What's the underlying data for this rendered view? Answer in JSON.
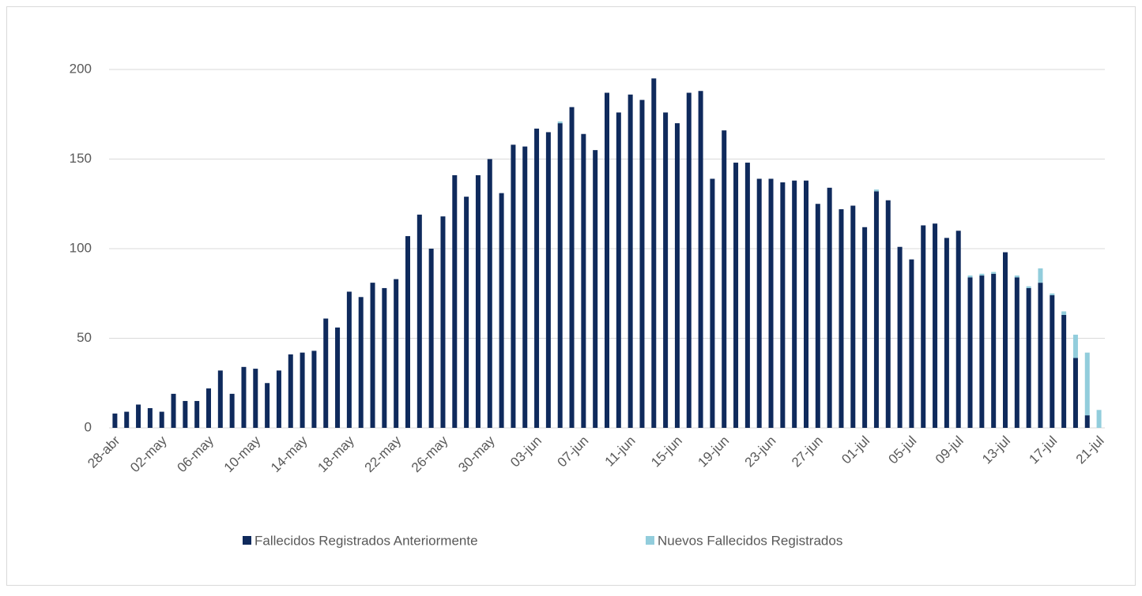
{
  "chart_data": {
    "type": "stacked_bar",
    "categories": [
      "28-abr",
      null,
      null,
      null,
      "02-may",
      null,
      null,
      null,
      "06-may",
      null,
      null,
      null,
      "10-may",
      null,
      null,
      null,
      "14-may",
      null,
      null,
      null,
      "18-may",
      null,
      null,
      null,
      "22-may",
      null,
      null,
      null,
      "26-may",
      null,
      null,
      null,
      "30-may",
      null,
      null,
      null,
      "03-jun",
      null,
      null,
      null,
      "07-jun",
      null,
      null,
      null,
      "11-jun",
      null,
      null,
      null,
      "15-jun",
      null,
      null,
      null,
      "19-jun",
      null,
      null,
      null,
      "23-jun",
      null,
      null,
      null,
      "27-jun",
      null,
      null,
      null,
      "01-jul",
      null,
      null,
      null,
      "05-jul",
      null,
      null,
      null,
      "09-jul",
      null,
      null,
      null,
      "13-jul",
      null,
      null,
      null,
      "17-jul",
      null,
      null,
      null,
      "21-jul"
    ],
    "series": [
      {
        "name": "Fallecidos Registrados Anteriormente",
        "color": "#0f2a5c",
        "values": [
          8,
          9,
          13,
          11,
          9,
          19,
          15,
          15,
          22,
          32,
          19,
          34,
          33,
          25,
          32,
          41,
          42,
          43,
          61,
          56,
          76,
          73,
          81,
          78,
          83,
          107,
          119,
          100,
          118,
          141,
          129,
          141,
          150,
          131,
          158,
          157,
          167,
          165,
          170,
          179,
          164,
          155,
          187,
          176,
          186,
          183,
          195,
          176,
          170,
          187,
          188,
          139,
          166,
          148,
          148,
          139,
          139,
          137,
          138,
          138,
          125,
          134,
          122,
          124,
          112,
          132,
          127,
          101,
          94,
          113,
          114,
          106,
          110,
          84,
          85,
          86,
          98,
          84,
          78,
          81,
          74,
          63,
          39,
          7,
          0
        ]
      },
      {
        "name": "Nuevos Fallecidos Registrados",
        "color": "#92cddc",
        "values": [
          0,
          0,
          0,
          0,
          0,
          0,
          0,
          0,
          0,
          0,
          0,
          0,
          0,
          0,
          0,
          0,
          0,
          0,
          0,
          0,
          0,
          0,
          0,
          0,
          0,
          0,
          0,
          0,
          0,
          0,
          0,
          0,
          0,
          0,
          0,
          0,
          0,
          0,
          1,
          0,
          0,
          0,
          0,
          0,
          0,
          0,
          0,
          0,
          0,
          0,
          0,
          0,
          0,
          0,
          0,
          0,
          0,
          0,
          0,
          0,
          0,
          0,
          0,
          0,
          0,
          1,
          0,
          0,
          0,
          0,
          0,
          0,
          0,
          1,
          1,
          1,
          0,
          1,
          1,
          8,
          1,
          2,
          13,
          35,
          10
        ]
      }
    ],
    "ylim": [
      0,
      200
    ],
    "yticks": [
      0,
      50,
      100,
      150,
      200
    ],
    "grid": true,
    "legend": "bottom"
  }
}
